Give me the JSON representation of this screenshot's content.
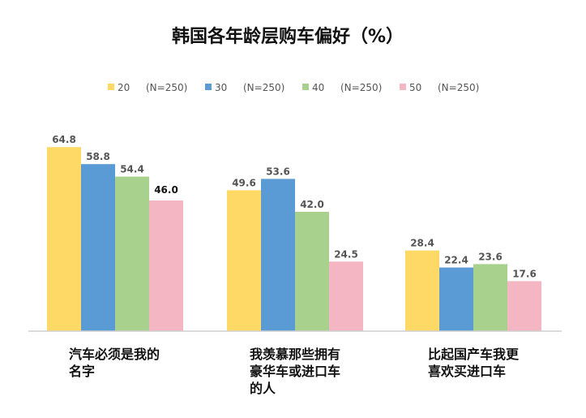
{
  "chart_data": {
    "type": "bar",
    "title": "韩国各年龄层购车偏好（%）",
    "categories": [
      [
        "汽车必须是我的",
        "名字"
      ],
      [
        "我羡慕那些拥有",
        "豪华车或进口车",
        "的人"
      ],
      [
        "比起国产车我更",
        "喜欢买进口车"
      ]
    ],
    "series": [
      {
        "name": "20",
        "n_label": "(N=250)",
        "color": "#FFD966",
        "values": [
          64.8,
          49.6,
          28.4
        ],
        "value_labels": [
          "64.8",
          "49.6",
          "28.4"
        ]
      },
      {
        "name": "30",
        "n_label": "(N=250)",
        "color": "#5B9BD5",
        "values": [
          58.8,
          53.6,
          22.4
        ],
        "value_labels": [
          "58.8",
          "53.6",
          "22.4"
        ]
      },
      {
        "name": "40",
        "n_label": "(N=250)",
        "color": "#A9D18E",
        "values": [
          54.4,
          42.0,
          23.6
        ],
        "value_labels": [
          "54.4",
          "42.0",
          "23.6"
        ]
      },
      {
        "name": "50",
        "n_label": "(N=250)",
        "color": "#F4B6C2",
        "values": [
          46.0,
          24.5,
          17.6
        ],
        "value_labels": [
          "46.0",
          "24.5",
          "17.6"
        ]
      }
    ],
    "emphasized_label": {
      "series": 3,
      "category": 0
    },
    "ylim": [
      0,
      70
    ],
    "xlabel": "",
    "ylabel": "",
    "grid": false,
    "legend_position": "top"
  }
}
